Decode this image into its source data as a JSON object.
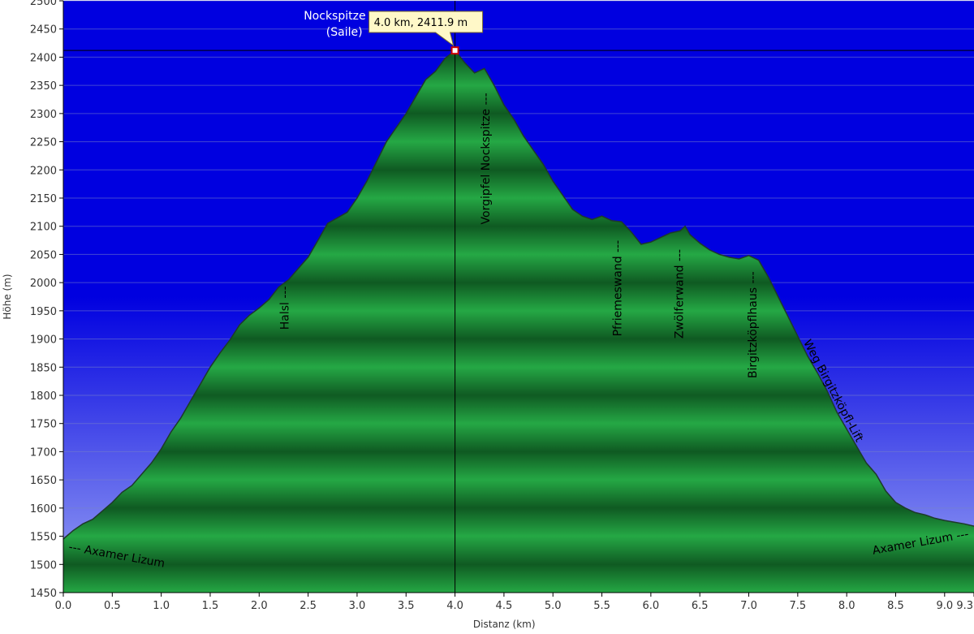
{
  "chart_data": {
    "type": "area",
    "xlabel": "Distanz  (km)",
    "ylabel": "Höhe (m)",
    "xlim": [
      0.0,
      9.3
    ],
    "ylim": [
      1450,
      2500
    ],
    "x_ticks": [
      0.0,
      0.5,
      1.0,
      1.5,
      2.0,
      2.5,
      3.0,
      3.5,
      4.0,
      4.5,
      5.0,
      5.5,
      6.0,
      6.5,
      7.0,
      7.5,
      8.0,
      8.5,
      9.0,
      9.3
    ],
    "x_tick_labels": [
      "0.0",
      "0.5",
      "1.0",
      "1.5",
      "2.0",
      "2.5",
      "3.0",
      "3.5",
      "4.0",
      "4.5",
      "5.0",
      "5.5",
      "6.0",
      "6.5",
      "7.0",
      "7.5",
      "8.0",
      "8.5",
      "9.0",
      "9.3"
    ],
    "y_ticks": [
      1450,
      1500,
      1550,
      1600,
      1650,
      1700,
      1750,
      1800,
      1850,
      1900,
      1950,
      2000,
      2050,
      2100,
      2150,
      2200,
      2250,
      2300,
      2350,
      2400,
      2450,
      2500
    ],
    "y_tick_labels": [
      "1450",
      "1500",
      "1550",
      "1600",
      "1650",
      "1700",
      "1750",
      "1800",
      "1850",
      "1900",
      "1950",
      "2000",
      "2050",
      "2100",
      "2150",
      "2200",
      "2250",
      "2300",
      "2350",
      "2400",
      "2450",
      "2500"
    ],
    "grid": true,
    "colors": {
      "sky_top": "#0000e0",
      "sky_bottom": "#9aa4f4",
      "fill_light": "#25a845",
      "fill_dark": "#0f5a22",
      "outline": "#1e3a2a"
    },
    "series": [
      {
        "x": [
          0.0,
          0.1,
          0.2,
          0.3,
          0.4,
          0.5,
          0.6,
          0.7,
          0.8,
          0.9,
          1.0,
          1.1,
          1.2,
          1.3,
          1.4,
          1.5,
          1.6,
          1.7,
          1.8,
          1.9,
          2.0,
          2.1,
          2.2,
          2.3,
          2.4,
          2.5,
          2.6,
          2.7,
          2.8,
          2.9,
          3.0,
          3.1,
          3.2,
          3.3,
          3.4,
          3.5,
          3.6,
          3.7,
          3.8,
          3.9,
          4.0,
          4.1,
          4.2,
          4.3,
          4.4,
          4.5,
          4.6,
          4.7,
          4.8,
          4.9,
          5.0,
          5.1,
          5.2,
          5.3,
          5.4,
          5.5,
          5.6,
          5.7,
          5.8,
          5.9,
          6.0,
          6.1,
          6.2,
          6.3,
          6.35,
          6.4,
          6.5,
          6.6,
          6.7,
          6.8,
          6.9,
          7.0,
          7.1,
          7.2,
          7.3,
          7.4,
          7.5,
          7.6,
          7.7,
          7.8,
          7.9,
          8.0,
          8.1,
          8.2,
          8.3,
          8.4,
          8.5,
          8.6,
          8.7,
          8.8,
          8.9,
          9.0,
          9.1,
          9.2,
          9.3
        ],
        "y": [
          1545,
          1560,
          1572,
          1580,
          1595,
          1610,
          1628,
          1640,
          1660,
          1680,
          1705,
          1735,
          1760,
          1790,
          1820,
          1850,
          1875,
          1898,
          1925,
          1942,
          1955,
          1970,
          1992,
          2005,
          2025,
          2045,
          2075,
          2105,
          2115,
          2125,
          2150,
          2180,
          2215,
          2250,
          2275,
          2300,
          2330,
          2360,
          2375,
          2398,
          2411.9,
          2390,
          2372,
          2380,
          2350,
          2315,
          2290,
          2260,
          2235,
          2210,
          2180,
          2155,
          2130,
          2118,
          2112,
          2118,
          2110,
          2108,
          2090,
          2068,
          2072,
          2080,
          2088,
          2092,
          2100,
          2085,
          2070,
          2058,
          2050,
          2045,
          2042,
          2048,
          2040,
          2010,
          1975,
          1940,
          1905,
          1870,
          1840,
          1808,
          1770,
          1740,
          1710,
          1680,
          1660,
          1630,
          1610,
          1600,
          1592,
          1588,
          1582,
          1578,
          1575,
          1572,
          1568
        ]
      }
    ],
    "crosshair": {
      "x": 4.0,
      "y": 2411.9
    },
    "tooltip_text": "4.0 km, 2411.9 m",
    "peak_label_line1": "Nockspitze",
    "peak_label_line2": "(Saile)",
    "annotations": [
      {
        "text": "--- Axamer Lizum",
        "x": 0.05,
        "y": 1525,
        "rotation": 10,
        "anchor": "start"
      },
      {
        "text": "Halsl ---",
        "x": 2.3,
        "y": 1955,
        "rotation": -90,
        "anchor": "middle"
      },
      {
        "text": "Vorgipfel Nockspitze ---",
        "x": 4.35,
        "y": 2220,
        "rotation": -90,
        "anchor": "middle"
      },
      {
        "text": "Pfriemeswand ---",
        "x": 5.7,
        "y": 1990,
        "rotation": -90,
        "anchor": "middle"
      },
      {
        "text": "Zwölferwand ---",
        "x": 6.33,
        "y": 1980,
        "rotation": -90,
        "anchor": "middle"
      },
      {
        "text": "Birgitzköpflhaus ---",
        "x": 7.08,
        "y": 1925,
        "rotation": -90,
        "anchor": "middle"
      },
      {
        "text": "Weg Birgitzköpfl-Lift",
        "x": 7.83,
        "y": 1805,
        "rotation": 62,
        "anchor": "middle"
      },
      {
        "text": "Axamer Lizum ---",
        "x": 9.25,
        "y": 1548,
        "rotation": -10,
        "anchor": "end"
      }
    ]
  }
}
